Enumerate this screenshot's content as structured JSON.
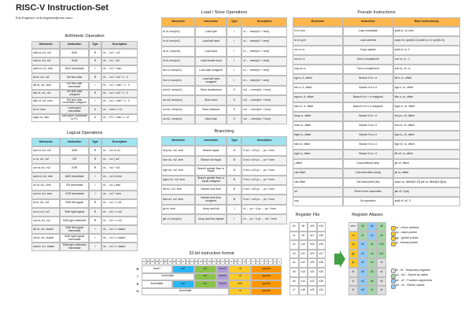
{
  "title": "RISC-V Instruction-Set",
  "subtitle": "Erik Engheim <erik.engheim@mac.com>",
  "arithmetic": {
    "title": "Arithmetic Operation",
    "header_color": "#e4e4e4",
    "columns": [
      "Mnemonic",
      "Instruction",
      "Type",
      "Description"
    ],
    "rows": [
      [
        "add rd, rs1, rs2",
        "ADD",
        "R",
        "rd ← rs1 + rs2"
      ],
      [
        "sub rd, rs1, rs2",
        "SUB",
        "R",
        "rd ← rs1 - rs2"
      ],
      [
        "addi rd, rs1, imm",
        "ADD immediate",
        "I",
        "rd ← rs1 + imm"
      ],
      [
        "slt rd, rs1, rs2",
        "Set less than",
        "R",
        "rd ← rs1 < rs2 ? 1 : 0"
      ],
      [
        "slti rd, rs1, imm",
        "Set less than immediate",
        "I",
        "rd ← rs1 < imm ? 1 : 0"
      ],
      [
        "sltu rd, rs1, rs2",
        "Set less than unsigned",
        "R",
        "rd ← rs1 < rs2 ? 1 : 0"
      ],
      [
        "sltiu rd, rs1, imm",
        "Set less than immediate unsigned",
        "I",
        "rd ← rs1 < imm ? 1 : 0"
      ],
      [
        "lui rd, imm",
        "Load upper immediate",
        "U",
        "rd ← imm << 12"
      ],
      [
        "auipc rd, imm",
        "Add upper immediate to PC",
        "U",
        "rd ← PC + imm << 12"
      ]
    ]
  },
  "logical": {
    "title": "Logical Operations",
    "header_color": "#9fe3f0",
    "columns": [
      "Mnemonic",
      "Instruction",
      "Type",
      "Description"
    ],
    "rows": [
      [
        "and rd, rs1, rs2",
        "AND",
        "R",
        "rd ← rs1 & rs2"
      ],
      [
        "or rd, rs1, rs2",
        "OR",
        "R",
        "rd ← rs1 | rs2"
      ],
      [
        "xor rd, rs1, rs2",
        "XOR",
        "R",
        "rd ← rs1 ^ rs2"
      ],
      [
        "andi rd, rs1, imm",
        "AND immediate",
        "I",
        "rd ← rs1 & imm"
      ],
      [
        "ori rd, rs1, imm",
        "OR immediate",
        "I",
        "rd ← rs1 | imm"
      ],
      [
        "xori rd, rs1, imm",
        "XOR immediate",
        "I",
        "rd ← rs1 ^ imm"
      ],
      [
        "sll rd, rs1, rs2",
        "Shift left logical",
        "R",
        "rd ← rs1 << rs2"
      ],
      [
        "srl rd, rs1, rs2",
        "Shift right logical",
        "R",
        "rd ← rs1 >> rs2"
      ],
      [
        "sra rd, rs1, rs2",
        "Shift right arithmetic",
        "R",
        "rd ← rs1 >> rs2"
      ],
      [
        "slli rd, rs1, shamt",
        "Shift left logical immediate",
        "I",
        "rd ← rs1 << shamt"
      ],
      [
        "srli rd, rs1, shamt",
        "Shift right logical immediate",
        "I",
        "rd ← rs1 >> shamt"
      ],
      [
        "srai rd, rs1, shamt",
        "Shift right arithmetic immediate",
        "I",
        "rd ← rs1 >> shamt"
      ]
    ]
  },
  "load_store": {
    "title": "Load / Store Operations",
    "header_color": "#ffb74d",
    "columns": [
      "Mnemonic",
      "Instruction",
      "Type",
      "Description"
    ],
    "rows": [
      [
        "lb rd, imm(rs1)",
        "Load byte",
        "I",
        "rd ← mem[rs1 + imm]"
      ],
      [
        "lh rd, imm(rs1)",
        "Load half word",
        "I",
        "rd ← mem[rs1 + imm]"
      ],
      [
        "lw rd, imm(rs1)",
        "Load word",
        "I",
        "rd ← mem[rs1 + imm]"
      ],
      [
        "ld rd, imm(rs1)",
        "Load double word",
        "I",
        "rd ← mem[rs1 + imm]"
      ],
      [
        "lbu rd, imm(rs1)",
        "Load byte unsigned",
        "I",
        "rd ← mem[rs1 + imm]"
      ],
      [
        "lhu rd, imm(rs1)",
        "Load half word unsigned",
        "I",
        "rd ← mem[rs1 + imm]"
      ],
      [
        "sd rs2, imm(rs1)",
        "Store doubleword",
        "S",
        "rs2 → mem[rs1 + imm]"
      ],
      [
        "sw rs2, imm(rs1)",
        "Store word",
        "S",
        "rs2 → mem[rs1 + imm]"
      ],
      [
        "sh rs2, imm(rs1)",
        "Store halfword",
        "S",
        "rs2 → mem[rs1 + imm]"
      ],
      [
        "sb rs2, imm(rs1)",
        "Store byte",
        "S",
        "rs2 → mem[rs1 + imm]"
      ]
    ]
  },
  "branching": {
    "title": "Branching",
    "header_color": "#9fe3f0",
    "columns": [
      "Mnemonic",
      "Instruction",
      "Type",
      "Description"
    ],
    "rows": [
      [
        "beq rs1, rs2, imm",
        "Branch equal",
        "B",
        "if rs1 = rs2 pc ← pc + imm"
      ],
      [
        "bne rs1, rs2, imm",
        "Branch not equal",
        "B",
        "if rs1 ≠ rs2 pc ← pc + imm"
      ],
      [
        "bge rs1, rs2, imm",
        "Branch greater than or equal",
        "B",
        "if rs1 ≥ rs2 pc ← pc + imm"
      ],
      [
        "bgeu rs1, rs2, imm",
        "Branch greater than or equal unsigned",
        "B",
        "if rs1 ≥ rs2 pc ← pc + imm"
      ],
      [
        "blt rs1, rs2, imm",
        "Branch less than",
        "B",
        "if rs1 < rs2 pc ← pc + imm"
      ],
      [
        "bltu rs1, rs2, imm",
        "Branch less than unsigned",
        "B",
        "if rs1 < rs2 pc ← pc + imm"
      ],
      [
        "jal rd, imm",
        "Jump and link",
        "J",
        "rd ← pc + 4 pc ← pc + imm"
      ],
      [
        "jalr rd, imm(rs1)",
        "Jump and link register",
        "I",
        "rd ← pc + 4 pc ← rs1 + imm"
      ]
    ]
  },
  "pseudo": {
    "title": "Pseudo Instructions",
    "header_color": "#ffb74d",
    "columns": [
      "Mnemonic",
      "Instruction",
      "Base instruction(s)"
    ],
    "rows": [
      [
        "li rd, imm",
        "Load immediate",
        "addi rd, x0, imm"
      ],
      [
        "la rd, sym",
        "Load address",
        "auipc rd, sym[31:12] addi rd, rd, sym[11:0]"
      ],
      [
        "mv rd, rs",
        "Copy register",
        "addi rd, rs, 0"
      ],
      [
        "not rd, rs",
        "One's complement",
        "xori rd, rs, -1"
      ],
      [
        "neg rd, rs",
        "Two's complement",
        "sub rd, x0, rs"
      ],
      [
        "bgt rs, rt, offset",
        "Branch if rs > rt",
        "blt rt, rs, offset"
      ],
      [
        "ble rs, rt, offset",
        "Branch if rs ≤ rt",
        "bge rt, rs, offset"
      ],
      [
        "bgtu rs, rt, offset",
        "Branch if rs > rt unsigned",
        "bltu rt, rs, offset"
      ],
      [
        "bleu rs, rt, offset",
        "Branch if rs ≤ rt unsigned",
        "bgeu rt, rs, offset"
      ],
      [
        "beqz rs, offset",
        "Branch if rs = 0",
        "beq rs, x0, offset"
      ],
      [
        "bnez rs, offset",
        "Branch if rs ≠ 0",
        "bne rs, x0, offset"
      ],
      [
        "bgez rs, offset",
        "Branch if rs ≥ 0",
        "bge rs, x0, offset"
      ],
      [
        "blez rs, offset",
        "Branch if rs ≤ 0",
        "bge x0, rs, offset"
      ],
      [
        "bgtz rs, offset",
        "Branch if rs > 0",
        "blt x0, rs, offset"
      ],
      [
        "j offset",
        "Unconditional jump",
        "jal x0, offset"
      ],
      [
        "call offset",
        "Call subroutine (near)",
        "jal ra, offset"
      ],
      [
        "call offset",
        "Call subroutine (far)",
        "auipc ra, offset[31:12] jalr ra, offset[11:0](ra)"
      ],
      [
        "ret",
        "Return from subroutine",
        "jalr x0, 0(ra)"
      ],
      [
        "nop",
        "No operation",
        "addi x0, x0, 0"
      ]
    ]
  },
  "register_file": {
    "title": "Register File",
    "cells": [
      "x0",
      "x1",
      "x2",
      "x3",
      "x4",
      "x5",
      "x6",
      "x7",
      "x8",
      "x9",
      "x10",
      "x11",
      "x12",
      "x13",
      "x14",
      "x15",
      "x16",
      "x17",
      "x18",
      "x19",
      "x20",
      "x21",
      "x22",
      "x23",
      "x24",
      "x25",
      "x26",
      "x27",
      "x28",
      "x29",
      "x30",
      "x31"
    ]
  },
  "register_aliases": {
    "title": "Register Aliases",
    "cells": [
      {
        "name": "zero",
        "color": "#eeeeee"
      },
      {
        "name": "ra",
        "color": "#ffca28"
      },
      {
        "name": "sp",
        "color": "#ffca28"
      },
      {
        "name": "gp",
        "color": "#ffca28"
      },
      {
        "name": "tp",
        "color": "#ffca28"
      },
      {
        "name": "t0",
        "color": "#e0e0e0"
      },
      {
        "name": "t1",
        "color": "#e0e0e0"
      },
      {
        "name": "t2",
        "color": "#e0e0e0"
      },
      {
        "name": "s0",
        "color": "#a5d6a7"
      },
      {
        "name": "s1",
        "color": "#a5d6a7"
      },
      {
        "name": "a0",
        "color": "#90caf9"
      },
      {
        "name": "a1",
        "color": "#90caf9"
      },
      {
        "name": "a2",
        "color": "#90caf9"
      },
      {
        "name": "a3",
        "color": "#90caf9"
      },
      {
        "name": "a4",
        "color": "#90caf9"
      },
      {
        "name": "a5",
        "color": "#90caf9"
      },
      {
        "name": "a6",
        "color": "#90caf9"
      },
      {
        "name": "a7",
        "color": "#90caf9"
      },
      {
        "name": "s2",
        "color": "#a5d6a7"
      },
      {
        "name": "s3",
        "color": "#a5d6a7"
      },
      {
        "name": "s4",
        "color": "#a5d6a7"
      },
      {
        "name": "s5",
        "color": "#a5d6a7"
      },
      {
        "name": "s6",
        "color": "#a5d6a7"
      },
      {
        "name": "s7",
        "color": "#a5d6a7"
      },
      {
        "name": "s8",
        "color": "#a5d6a7"
      },
      {
        "name": "s9",
        "color": "#a5d6a7"
      },
      {
        "name": "s10",
        "color": "#a5d6a7"
      },
      {
        "name": "s11",
        "color": "#a5d6a7"
      },
      {
        "name": "t3",
        "color": "#e0e0e0"
      },
      {
        "name": "t4",
        "color": "#e0e0e0"
      },
      {
        "name": "t5",
        "color": "#e0e0e0"
      },
      {
        "name": "t6",
        "color": "#e0e0e0"
      }
    ],
    "legend": [
      {
        "text": "ra - return address",
        "color": "#ffca28"
      },
      {
        "text": "sp - stack pointer",
        "color": "#ffca28"
      },
      {
        "text": "gp - global pointer",
        "color": "#ffca28"
      },
      {
        "text": "tp - thread pointer",
        "color": "#ffca28"
      },
      {
        "text": "t0 - t6 - Temporary registers",
        "color": "#e0e0e0"
      },
      {
        "text": "s0 - s11 - Saved by callee",
        "color": "#a5d6a7"
      },
      {
        "text": "a0 - a7 - Function arguments",
        "color": "#90caf9"
      },
      {
        "text": "a0 - a1 - Return values",
        "color": "#90caf9"
      }
    ]
  },
  "instruction_format": {
    "title": "32-bit instruction format",
    "bits": [
      31,
      30,
      29,
      28,
      27,
      26,
      25,
      24,
      23,
      22,
      21,
      20,
      19,
      18,
      17,
      16,
      15,
      14,
      13,
      12,
      11,
      10,
      9,
      8,
      7,
      6,
      5,
      4,
      3,
      2,
      1,
      0
    ],
    "rows": [
      {
        "type": "R",
        "fields": [
          {
            "name": "funct7",
            "color": "#ffffff"
          },
          {
            "name": "rs2",
            "color": "#29b6f6"
          },
          {
            "name": "rs1",
            "color": "#8bc34a"
          },
          {
            "name": "funct3",
            "color": "#b39ddb"
          },
          {
            "name": "rd",
            "color": "#ffca28"
          },
          {
            "name": "opcode",
            "color": "#ff9800"
          }
        ]
      },
      {
        "type": "I",
        "fields": [
          {
            "name": "immediate",
            "color": "#ffffff"
          },
          {
            "name": "rs1",
            "color": "#8bc34a"
          },
          {
            "name": "funct3",
            "color": "#b39ddb"
          },
          {
            "name": "rd",
            "color": "#ffca28"
          },
          {
            "name": "opcode",
            "color": "#ff9800"
          }
        ]
      },
      {
        "type": "S",
        "fields": [
          {
            "name": "immediate",
            "color": "#ffffff"
          },
          {
            "name": "rs2",
            "color": "#29b6f6"
          },
          {
            "name": "rs1",
            "color": "#8bc34a"
          },
          {
            "name": "funct3",
            "color": "#b39ddb"
          },
          {
            "name": "imm",
            "color": "#ffca28"
          },
          {
            "name": "opcode",
            "color": "#ff9800"
          }
        ]
      },
      {
        "type": "U",
        "fields": [
          {
            "name": "immediate",
            "color": "#ffffff"
          },
          {
            "name": "rd",
            "color": "#ffca28"
          },
          {
            "name": "opcode",
            "color": "#ff9800"
          }
        ]
      }
    ]
  }
}
